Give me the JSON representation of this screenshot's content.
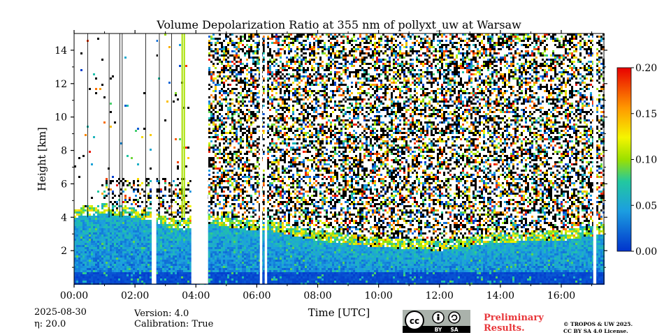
{
  "chart_data": {
    "type": "heatmap",
    "title": "Volume Depolarization Ratio at 355 nm of pollyxt_uw at Warsaw",
    "xlabel": "Time [UTC]",
    "ylabel": "Height [km]",
    "xlim_hours": [
      0,
      17.4
    ],
    "ylim_km": [
      0,
      15
    ],
    "x_ticks": [
      "00:00",
      "02:00",
      "04:00",
      "06:00",
      "08:00",
      "10:00",
      "12:00",
      "14:00",
      "16:00"
    ],
    "x_tick_hours": [
      0,
      2,
      4,
      6,
      8,
      10,
      12,
      14,
      16
    ],
    "y_ticks": [
      "2",
      "4",
      "6",
      "8",
      "10",
      "12",
      "14"
    ],
    "y_tick_values": [
      2,
      4,
      6,
      8,
      10,
      12,
      14
    ],
    "colorbar": {
      "min": 0.0,
      "max": 0.2,
      "ticks": [
        "0.00",
        "0.05",
        "0.10",
        "0.15",
        "0.20"
      ],
      "tick_values": [
        0.0,
        0.05,
        0.1,
        0.15,
        0.2
      ]
    },
    "data_gaps_hours": [
      [
        2.55,
        2.7
      ],
      [
        3.85,
        4.4
      ],
      [
        6.1,
        6.18
      ],
      [
        6.26,
        6.34
      ],
      [
        17.05,
        17.15
      ]
    ],
    "boundary_layer_top_km": [
      {
        "t": 0.0,
        "h": 4.0
      },
      {
        "t": 1.0,
        "h": 4.2
      },
      {
        "t": 2.0,
        "h": 4.0
      },
      {
        "t": 3.5,
        "h": 3.2
      },
      {
        "t": 4.4,
        "h": 3.6
      },
      {
        "t": 5.5,
        "h": 3.3
      },
      {
        "t": 6.4,
        "h": 3.2
      },
      {
        "t": 8.0,
        "h": 2.6
      },
      {
        "t": 10.0,
        "h": 2.2
      },
      {
        "t": 12.0,
        "h": 2.0
      },
      {
        "t": 14.0,
        "h": 2.5
      },
      {
        "t": 16.0,
        "h": 2.6
      },
      {
        "t": 17.4,
        "h": 3.0
      }
    ]
  },
  "footer": {
    "date": "2025-08-30",
    "eta": "η: 20.0",
    "version": "Version: 4.0",
    "calibration": "Calibration: True",
    "preliminary_line1": "Preliminary",
    "preliminary_line2": "Results.",
    "copyright_line1": "© TROPOS & UW 2025.",
    "copyright_line2": "CC BY SA 4.0 License.",
    "cc_text": "cc",
    "by_text": "BY",
    "sa_text": "SA"
  }
}
